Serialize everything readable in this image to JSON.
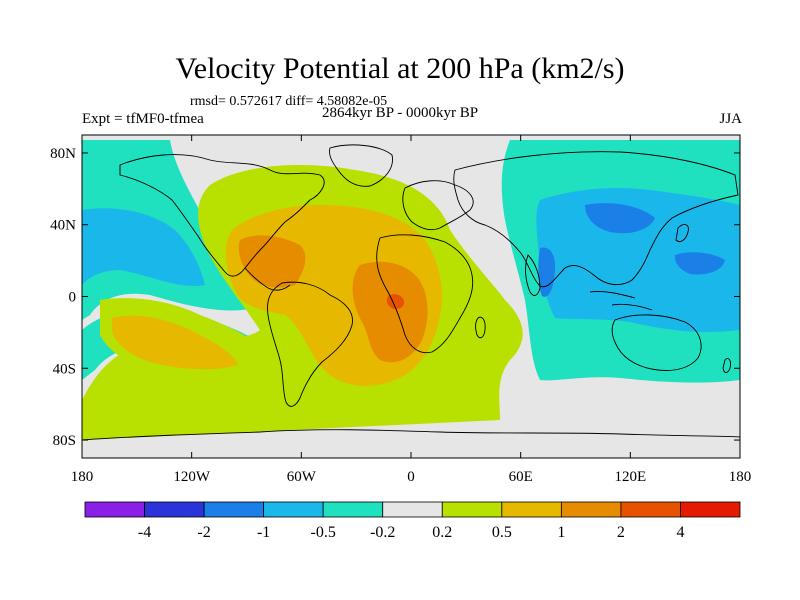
{
  "chart_data": {
    "type": "heatmap",
    "title": "Velocity Potential at 200 hPa (km2/s)",
    "stats": "rmsd= 0.572617 diff= 4.58082e-05",
    "left_label": "Expt = tfMF0-tfmea",
    "center_label": "2864kyr BP - 0000kyr BP",
    "right_label": "JJA",
    "x_ticks": [
      "180",
      "120W",
      "60W",
      "0",
      "60E",
      "120E",
      "180"
    ],
    "x_tick_values": [
      -180,
      -120,
      -60,
      0,
      60,
      120,
      180
    ],
    "y_ticks": [
      "80N",
      "40N",
      "0",
      "40S",
      "80S"
    ],
    "y_tick_values": [
      80,
      40,
      0,
      -40,
      -80
    ],
    "xlim": [
      -180,
      180
    ],
    "ylim": [
      -90,
      90
    ],
    "contour_levels": [
      -4,
      -2,
      -1,
      -0.5,
      -0.2,
      0.2,
      0.5,
      1,
      2,
      4
    ],
    "colorbar_labels": [
      "-4",
      "-2",
      "-1",
      "-0.5",
      "-0.2",
      "0.2",
      "0.5",
      "1",
      "2",
      "4"
    ],
    "colorbar_colors": [
      "#8a1fe6",
      "#2b34d9",
      "#1a7fe6",
      "#1ab8ea",
      "#1fe0bf",
      "#e6e6e6",
      "#b8e000",
      "#e6b800",
      "#e68c00",
      "#e65200",
      "#e61a00"
    ],
    "regions": [
      {
        "name": "tropical Atlantic / Africa positive center",
        "min_level": 0.5,
        "max_level": 2
      },
      {
        "name": "western Pacific / Asia negative center",
        "min_level": -1,
        "max_level": -0.2
      },
      {
        "name": "eastern Pacific negative band",
        "min_level": -1,
        "max_level": -0.2
      },
      {
        "name": "southeast Pacific positive cell",
        "min_level": 0.2,
        "max_level": 1
      }
    ]
  }
}
